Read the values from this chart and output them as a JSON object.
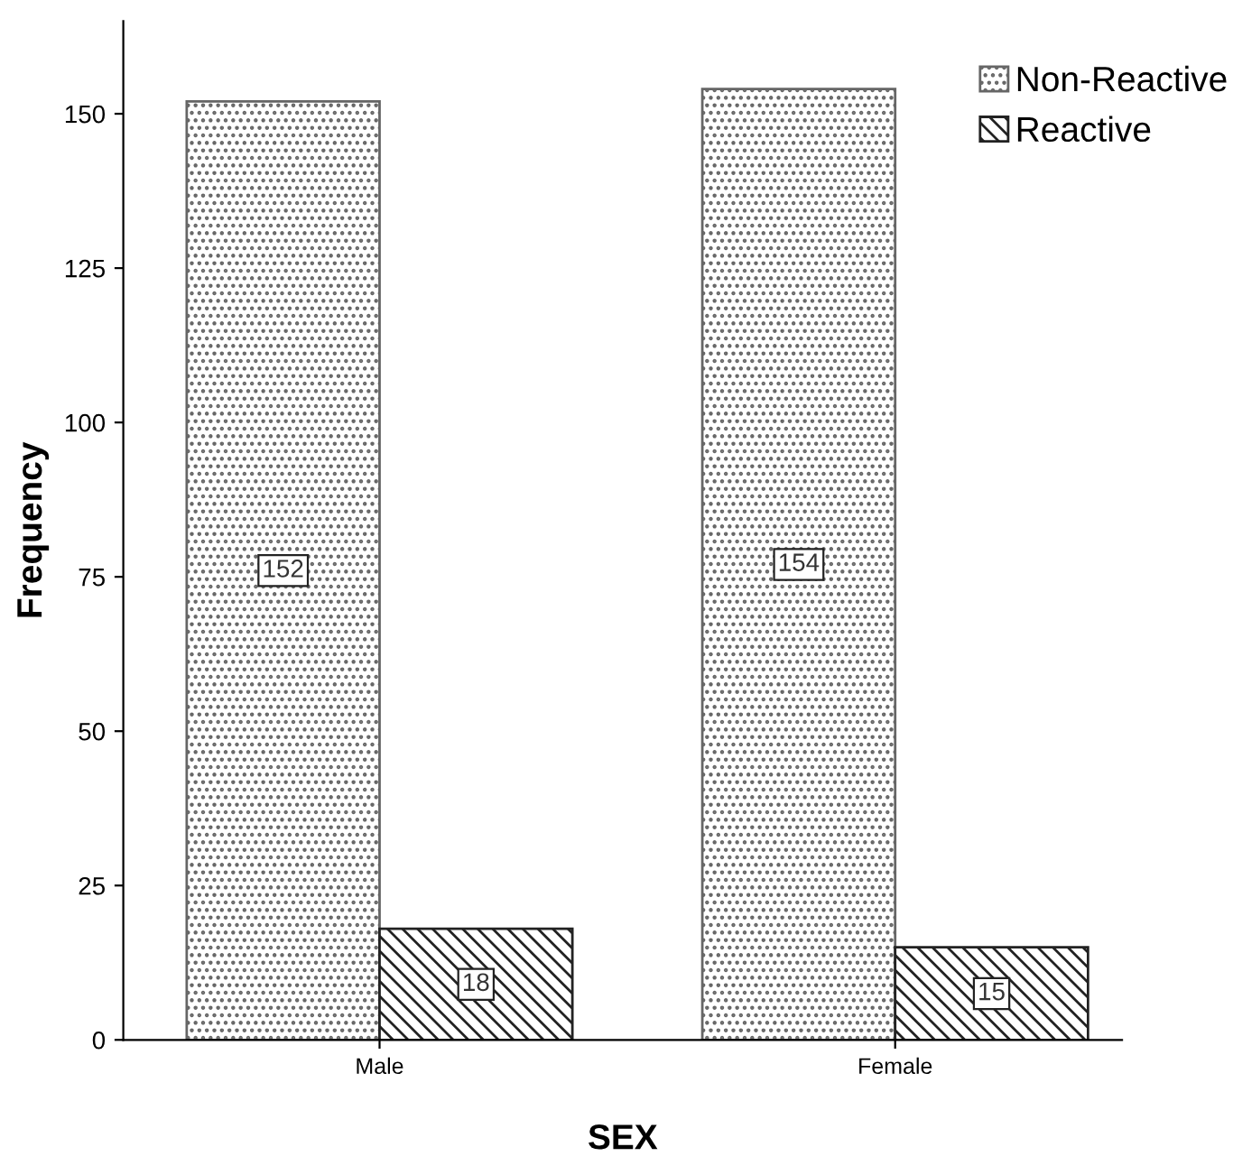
{
  "chart_data": {
    "type": "bar",
    "xlabel": "SEX",
    "ylabel": "Frequency",
    "categories": [
      "Male",
      "Female"
    ],
    "series": [
      {
        "name": "Non-Reactive",
        "color": "#666666",
        "values": [
          152,
          154
        ]
      },
      {
        "name": "Reactive",
        "color": "#222222",
        "values": [
          18,
          15
        ]
      }
    ],
    "ylim": [
      0,
      165
    ],
    "yticks": [
      0,
      25,
      50,
      75,
      100,
      125,
      150
    ],
    "data_labels": true,
    "grid": false,
    "legend": "top right"
  }
}
